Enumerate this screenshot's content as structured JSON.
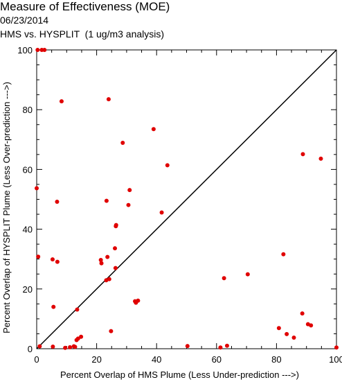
{
  "title": "Measure of Effectiveness (MOE)",
  "date": "06/23/2014",
  "subtitle": "HMS vs. HYSPLIT  (1 ug/m3 analysis)",
  "colors": {
    "points": "#e00000",
    "axes": "#000000",
    "diagonal": "#000000"
  },
  "chart_data": {
    "type": "scatter",
    "title": "Measure of Effectiveness (MOE)",
    "subtitle": "HMS vs. HYSPLIT  (1 ug/m3 analysis)",
    "date": "06/23/2014",
    "xlabel": "Percent Overlap of HMS Plume (Less Under-prediction --->)",
    "ylabel": "Percent Overlap of HYSPLIT Plume (Less Over-prediction --->)",
    "xlim": [
      0,
      100
    ],
    "ylim": [
      0,
      100
    ],
    "xticks": [
      0,
      20,
      40,
      60,
      80,
      100
    ],
    "yticks": [
      0,
      20,
      40,
      60,
      80,
      100
    ],
    "grid": false,
    "reference_line": "y = x",
    "series": [
      {
        "points": [
          [
            0.3,
            100
          ],
          [
            1.7,
            100
          ],
          [
            2.6,
            100
          ],
          [
            8.3,
            82.8
          ],
          [
            24,
            83.5
          ],
          [
            39,
            73.5
          ],
          [
            28.7,
            68.9
          ],
          [
            88.8,
            65.1
          ],
          [
            94.8,
            63.6
          ],
          [
            43.6,
            61.4
          ],
          [
            0,
            53.7
          ],
          [
            31,
            53.1
          ],
          [
            23.3,
            49.5
          ],
          [
            6.8,
            49.2
          ],
          [
            30.6,
            48.1
          ],
          [
            41.7,
            45.6
          ],
          [
            26.5,
            41.4
          ],
          [
            26.4,
            41
          ],
          [
            26.1,
            33.6
          ],
          [
            82.3,
            31.6
          ],
          [
            0.5,
            30.8
          ],
          [
            23.6,
            30.7
          ],
          [
            5.3,
            29.9
          ],
          [
            21.4,
            29.7
          ],
          [
            21.6,
            28.6
          ],
          [
            6.9,
            29.1
          ],
          [
            26.3,
            27
          ],
          [
            70.4,
            24.9
          ],
          [
            62.5,
            23.6
          ],
          [
            24.2,
            23.3
          ],
          [
            23.2,
            22.9
          ],
          [
            33.8,
            16.1
          ],
          [
            32.8,
            15.9
          ],
          [
            33.1,
            15.4
          ],
          [
            5.6,
            14
          ],
          [
            13.5,
            13.1
          ],
          [
            88.6,
            11.8
          ],
          [
            90.5,
            8.2
          ],
          [
            91.5,
            7.8
          ],
          [
            80.8,
            6.9
          ],
          [
            24.8,
            5.9
          ],
          [
            83.4,
            4.9
          ],
          [
            14.8,
            4
          ],
          [
            13.8,
            3.4
          ],
          [
            85.8,
            3.7
          ],
          [
            13.3,
            2.9
          ],
          [
            1,
            0.8
          ],
          [
            5.4,
            0.7
          ],
          [
            11.1,
            0.5
          ],
          [
            12.4,
            0.8
          ],
          [
            12.8,
            0.6
          ],
          [
            9.5,
            0.3
          ],
          [
            50.3,
            0.9
          ],
          [
            61.3,
            0.4
          ],
          [
            63.5,
            1
          ],
          [
            100,
            0.4
          ]
        ]
      }
    ]
  }
}
